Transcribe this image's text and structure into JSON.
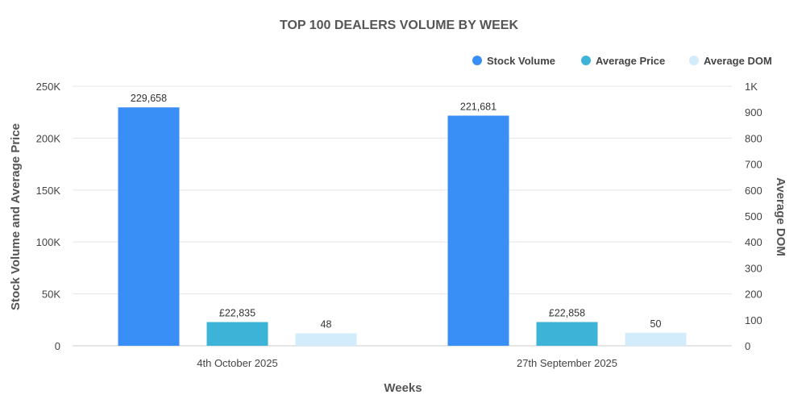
{
  "chart_data": {
    "type": "bar",
    "title": "TOP 100 DEALERS VOLUME BY WEEK",
    "xlabel": "Weeks",
    "ylabel": "Stock Volume and Average Price",
    "y2label": "Average DOM",
    "categories": [
      "4th October 2025",
      "27th September 2025"
    ],
    "ylim": [
      0,
      250000
    ],
    "y2lim": [
      0,
      1000
    ],
    "yticks": [
      "0",
      "50K",
      "100K",
      "150K",
      "200K",
      "250K"
    ],
    "y2ticks": [
      "0",
      "100",
      "200",
      "300",
      "400",
      "500",
      "600",
      "700",
      "800",
      "900",
      "1K"
    ],
    "legend_position": "top-right",
    "grid": true,
    "series": [
      {
        "name": "Stock Volume",
        "axis": "left",
        "color": "#3a8ff7",
        "values": [
          229658,
          221681
        ],
        "labels": [
          "229,658",
          "221,681"
        ]
      },
      {
        "name": "Average Price",
        "axis": "left",
        "color": "#3db3d8",
        "values": [
          22835,
          22858
        ],
        "labels": [
          "£22,835",
          "£22,858"
        ]
      },
      {
        "name": "Average DOM",
        "axis": "right",
        "color": "#d3ecfb",
        "values": [
          48,
          50
        ],
        "labels": [
          "48",
          "50"
        ]
      }
    ]
  }
}
